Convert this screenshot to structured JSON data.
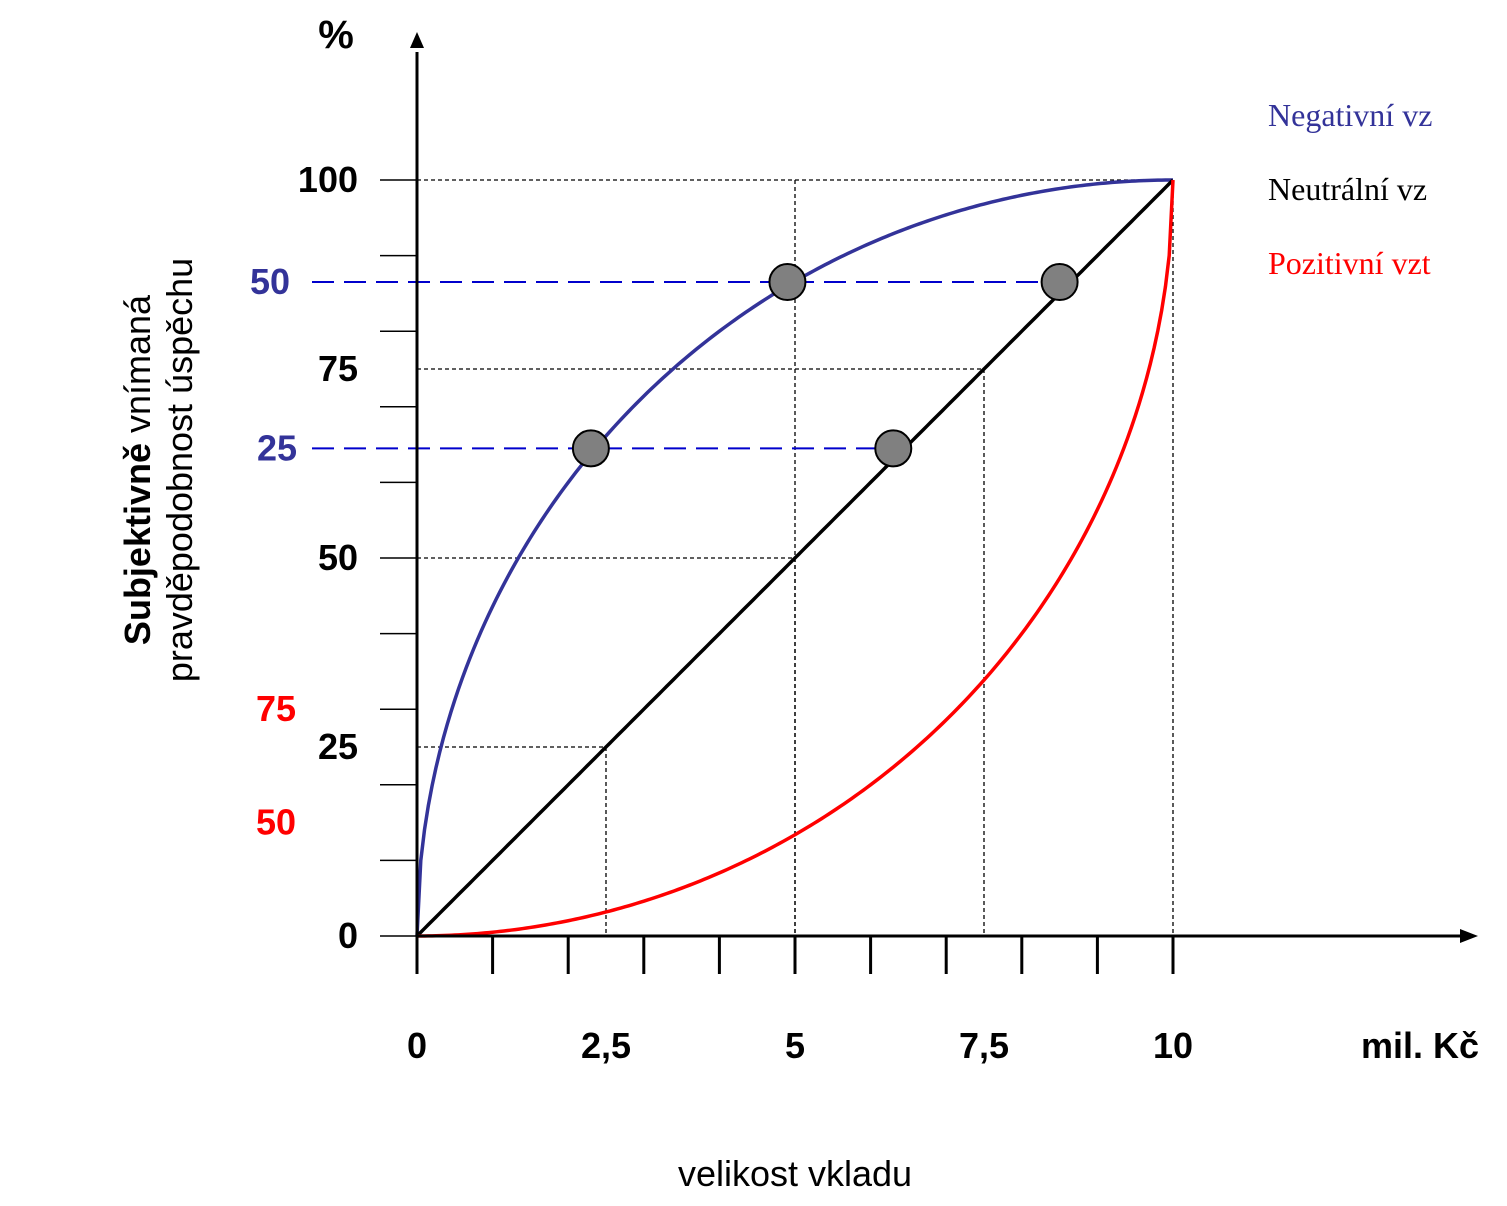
{
  "chart_data": {
    "type": "line",
    "ylabel_unit": "%",
    "xlabel_unit": "mil. Kč",
    "xlabel": "velikost vkladu",
    "ylabel_bold": "Subjektivně",
    "ylabel_rest_line1": "vnímaná",
    "ylabel_line2": "pravděpodobnost úspěchu",
    "xlim": [
      0,
      10
    ],
    "ylim": [
      0,
      100
    ],
    "x_ticks": [
      0,
      2.5,
      5,
      7.5,
      10
    ],
    "x_tick_labels": [
      "0",
      "2,5",
      "5",
      "7,5",
      "10"
    ],
    "y_ticks": [
      0,
      25,
      50,
      75,
      100
    ],
    "y_tick_labels": [
      "0",
      "25",
      "50",
      "75",
      "100"
    ],
    "blue_labels": [
      {
        "text": "50",
        "y": 86.5
      },
      {
        "text": "25",
        "y": 64.5
      }
    ],
    "red_labels": [
      {
        "text": "75",
        "y": 30
      },
      {
        "text": "50",
        "y": 15
      }
    ],
    "series": [
      {
        "name": "Negativní vz",
        "color": "#333399",
        "kind": "concave"
      },
      {
        "name": "Neutrální vz",
        "color": "#000000",
        "kind": "linear"
      },
      {
        "name": "Pozitivní vzt",
        "color": "#ff0000",
        "kind": "convex"
      }
    ],
    "markers": [
      {
        "x": 2.3,
        "y": 64.5
      },
      {
        "x": 4.9,
        "y": 86.5
      },
      {
        "x": 6.3,
        "y": 64.5
      },
      {
        "x": 8.5,
        "y": 86.5
      }
    ],
    "dashed_guides_blue": [
      {
        "y": 86.5,
        "x_to": 8.5
      },
      {
        "y": 64.5,
        "x_to": 6.3
      }
    ],
    "dotted_guides": [
      {
        "x": 2.5,
        "y": 25
      },
      {
        "x": 5,
        "y": 50
      },
      {
        "x": 7.5,
        "y": 75
      },
      {
        "x": 10,
        "y": 100
      },
      {
        "x": 5,
        "y": 100,
        "from_y": 100
      }
    ]
  }
}
